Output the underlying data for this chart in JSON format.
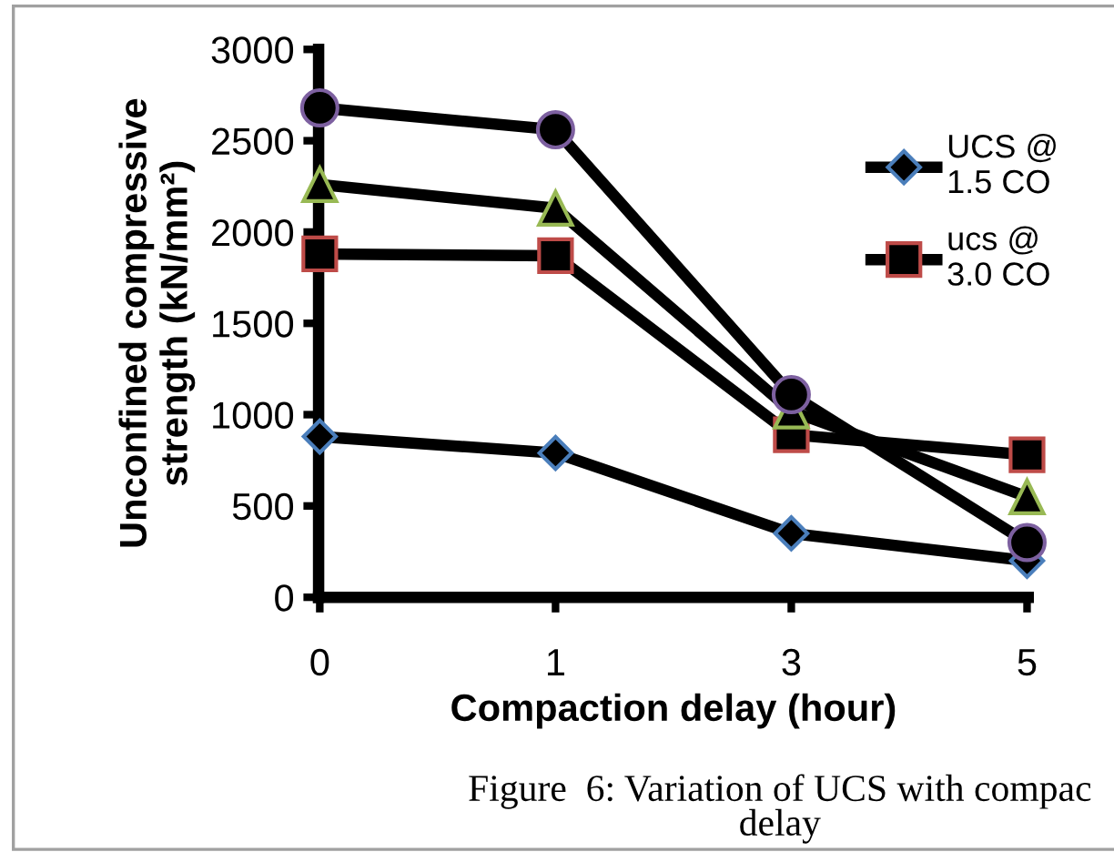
{
  "chart_data": {
    "type": "line",
    "xlabel": "Compaction delay (hour)",
    "ylabel": "Unconfined compressive\nstrength (kN/mm²)",
    "categories": [
      "0",
      "1",
      "3",
      "5"
    ],
    "series": [
      {
        "name": "UCS @\n1.5 CO",
        "color": "#000000",
        "marker": "diamond",
        "values": [
          880,
          790,
          350,
          200
        ]
      },
      {
        "name": "ucs @\n3.0 CO",
        "color": "#000000",
        "marker": "square",
        "values": [
          1880,
          1870,
          890,
          780
        ]
      },
      {
        "color": "#000000",
        "marker": "triangle",
        "values": [
          2260,
          2130,
          1020,
          550
        ]
      },
      {
        "color": "#000000",
        "marker": "circle",
        "values": [
          2680,
          2560,
          1110,
          300
        ]
      }
    ],
    "ylim": [
      0,
      3000
    ],
    "yticks": [
      0,
      500,
      1000,
      1500,
      2000,
      2500,
      3000
    ],
    "grid": false,
    "legend": "top right",
    "line_style": "solid",
    "annotations": [
      "Figure  6: Variation of UCS with compac\ndelay"
    ]
  }
}
